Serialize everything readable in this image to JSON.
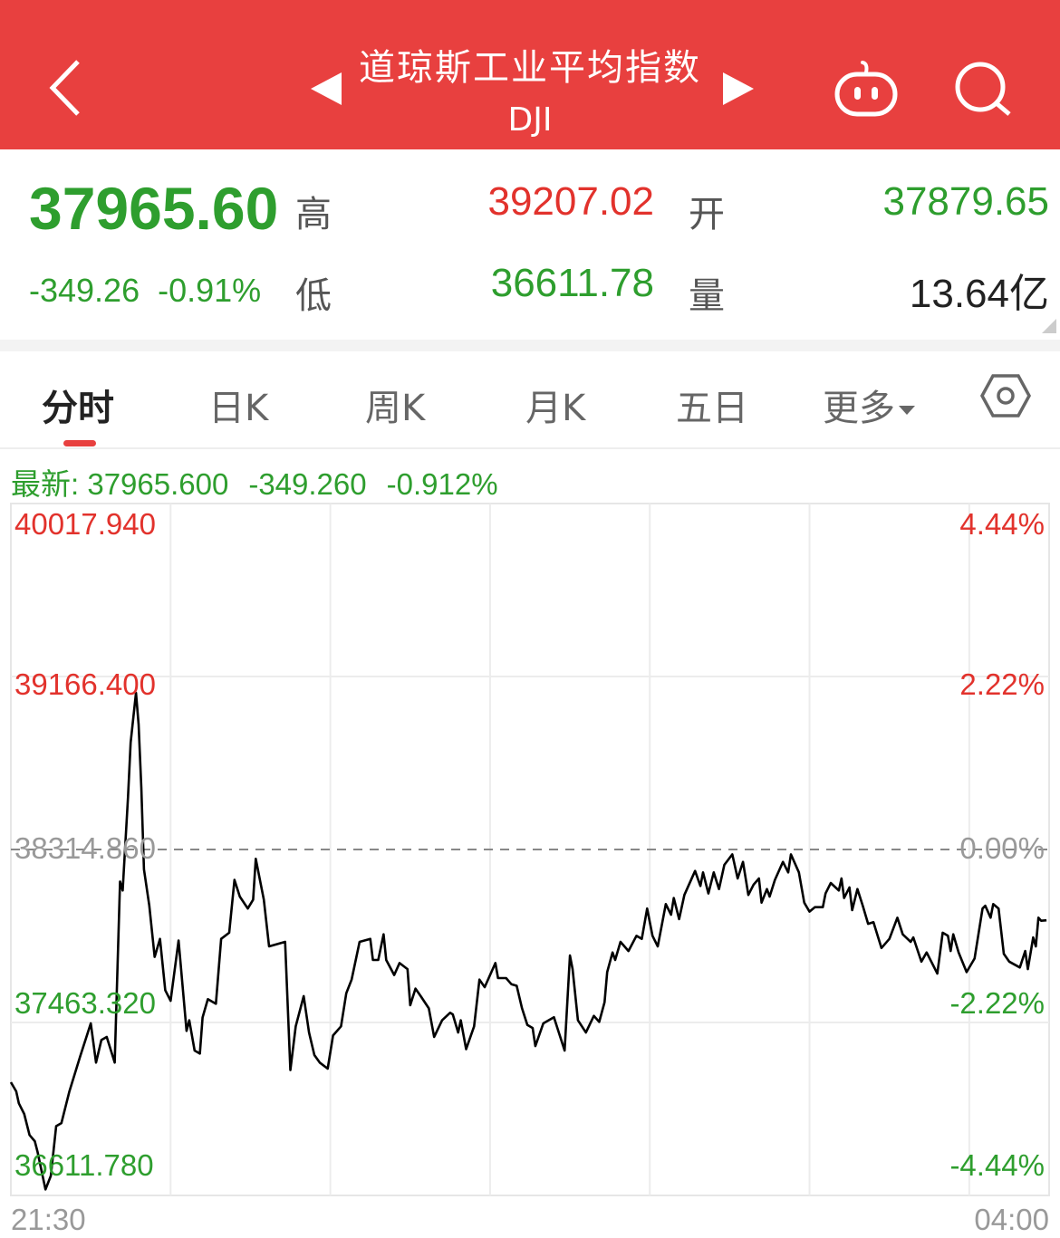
{
  "header": {
    "title": "道琼斯工业平均指数",
    "code": "DJI",
    "icons": [
      "back-chevron-icon",
      "prev-triangle-icon",
      "next-triangle-icon",
      "robot-assistant-icon",
      "search-icon"
    ],
    "color": "#E8403F"
  },
  "quote": {
    "price": "37965.60",
    "change": "-349.26",
    "change_pct": "-0.91%",
    "high_label": "高",
    "high": "39207.02",
    "low_label": "低",
    "low": "36611.78",
    "open_label": "开",
    "open": "37879.65",
    "volume_label": "量",
    "volume": "13.64亿"
  },
  "tabs": [
    {
      "label": "分时",
      "active": true
    },
    {
      "label": "日K"
    },
    {
      "label": "周K"
    },
    {
      "label": "月K"
    },
    {
      "label": "五日"
    },
    {
      "label": "更多"
    }
  ],
  "settings_icon": "hexagon-settings-icon",
  "latest": {
    "label": "最新: 37965.600",
    "change": "-349.260",
    "pct": "-0.912%"
  },
  "colors": {
    "up": "#E2322C",
    "down": "#2E9E2E",
    "flat": "#999999",
    "line": "#000000"
  },
  "chart_data": {
    "type": "line",
    "x_start": "21:30",
    "x_end": "04:00",
    "x_tick_labels": [
      "21:30",
      "04:00"
    ],
    "ylim": [
      36611.78,
      40017.94
    ],
    "prev_close": 38314.86,
    "y_ticks_left": [
      "40017.940",
      "39166.400",
      "38314.860",
      "37463.320",
      "36611.780"
    ],
    "y_ticks_right": [
      "4.44%",
      "2.22%",
      "0.00%",
      "-2.22%",
      "-4.44%"
    ],
    "grid": true,
    "points": [
      [
        "21:30",
        37169
      ],
      [
        "21:32",
        37124
      ],
      [
        "21:33",
        37065
      ],
      [
        "21:35",
        37013
      ],
      [
        "21:37",
        36909
      ],
      [
        "21:39",
        36879
      ],
      [
        "21:40",
        36827
      ],
      [
        "21:43",
        36641
      ],
      [
        "21:45",
        36708
      ],
      [
        "21:47",
        36953
      ],
      [
        "21:49",
        36968
      ],
      [
        "21:52",
        37124
      ],
      [
        "21:56",
        37295
      ],
      [
        "22:00",
        37459
      ],
      [
        "22:02",
        37266
      ],
      [
        "22:04",
        37377
      ],
      [
        "22:06",
        37392
      ],
      [
        "22:09",
        37266
      ],
      [
        "22:11",
        38157
      ],
      [
        "22:12",
        38113
      ],
      [
        "22:14",
        38573
      ],
      [
        "22:15",
        38841
      ],
      [
        "22:17",
        39086
      ],
      [
        "22:18",
        38930
      ],
      [
        "22:19",
        38618
      ],
      [
        "22:20",
        38217
      ],
      [
        "22:22",
        38038
      ],
      [
        "22:24",
        37786
      ],
      [
        "22:26",
        37875
      ],
      [
        "22:28",
        37622
      ],
      [
        "22:30",
        37570
      ],
      [
        "22:33",
        37867
      ],
      [
        "22:36",
        37422
      ],
      [
        "22:37",
        37474
      ],
      [
        "22:39",
        37325
      ],
      [
        "22:41",
        37310
      ],
      [
        "22:42",
        37488
      ],
      [
        "22:44",
        37578
      ],
      [
        "22:47",
        37555
      ],
      [
        "22:49",
        37875
      ],
      [
        "22:52",
        37905
      ],
      [
        "22:54",
        38165
      ],
      [
        "22:56",
        38083
      ],
      [
        "22:59",
        38024
      ],
      [
        "23:01",
        38068
      ],
      [
        "23:02",
        38269
      ],
      [
        "23:05",
        38068
      ],
      [
        "23:07",
        37838
      ],
      [
        "23:13",
        37860
      ],
      [
        "23:15",
        37229
      ],
      [
        "23:17",
        37444
      ],
      [
        "23:20",
        37593
      ],
      [
        "23:22",
        37414
      ],
      [
        "23:24",
        37303
      ],
      [
        "23:26",
        37266
      ],
      [
        "23:29",
        37236
      ],
      [
        "23:31",
        37399
      ],
      [
        "23:34",
        37444
      ],
      [
        "23:36",
        37607
      ],
      [
        "23:38",
        37674
      ],
      [
        "23:41",
        37860
      ],
      [
        "23:45",
        37875
      ],
      [
        "23:46",
        37771
      ],
      [
        "23:48",
        37771
      ],
      [
        "23:50",
        37897
      ],
      [
        "23:51",
        37771
      ],
      [
        "23:54",
        37697
      ],
      [
        "23:56",
        37756
      ],
      [
        "23:59",
        37726
      ],
      [
        "00:00",
        37548
      ],
      [
        "00:02",
        37630
      ],
      [
        "00:04",
        37592
      ],
      [
        "00:07",
        37533
      ],
      [
        "00:09",
        37392
      ],
      [
        "00:12",
        37474
      ],
      [
        "00:15",
        37511
      ],
      [
        "00:16",
        37503
      ],
      [
        "00:18",
        37414
      ],
      [
        "00:19",
        37474
      ],
      [
        "00:21",
        37332
      ],
      [
        "00:24",
        37444
      ],
      [
        "00:26",
        37674
      ],
      [
        "00:28",
        37637
      ],
      [
        "00:32",
        37756
      ],
      [
        "00:33",
        37682
      ],
      [
        "00:36",
        37682
      ],
      [
        "00:38",
        37652
      ],
      [
        "00:40",
        37644
      ],
      [
        "00:42",
        37533
      ],
      [
        "00:44",
        37451
      ],
      [
        "00:46",
        37436
      ],
      [
        "00:47",
        37347
      ],
      [
        "00:50",
        37459
      ],
      [
        "00:54",
        37489
      ],
      [
        "00:56",
        37407
      ],
      [
        "00:58",
        37325
      ],
      [
        "01:00",
        37793
      ],
      [
        "01:01",
        37726
      ],
      [
        "01:03",
        37474
      ],
      [
        "01:06",
        37414
      ],
      [
        "01:09",
        37496
      ],
      [
        "01:11",
        37466
      ],
      [
        "01:13",
        37563
      ],
      [
        "01:14",
        37711
      ],
      [
        "01:16",
        37808
      ],
      [
        "01:17",
        37771
      ],
      [
        "01:19",
        37860
      ],
      [
        "01:22",
        37815
      ],
      [
        "01:25",
        37890
      ],
      [
        "01:27",
        37875
      ],
      [
        "01:29",
        38024
      ],
      [
        "01:31",
        37890
      ],
      [
        "01:33",
        37838
      ],
      [
        "01:36",
        38046
      ],
      [
        "01:38",
        37994
      ],
      [
        "01:39",
        38076
      ],
      [
        "01:41",
        37972
      ],
      [
        "01:43",
        38091
      ],
      [
        "01:47",
        38209
      ],
      [
        "01:49",
        38135
      ],
      [
        "01:50",
        38202
      ],
      [
        "01:52",
        38098
      ],
      [
        "01:54",
        38202
      ],
      [
        "01:56",
        38120
      ],
      [
        "01:58",
        38239
      ],
      [
        "02:01",
        38291
      ],
      [
        "02:03",
        38172
      ],
      [
        "02:05",
        38254
      ],
      [
        "02:07",
        38091
      ],
      [
        "02:09",
        38142
      ],
      [
        "02:11",
        38172
      ],
      [
        "02:12",
        38053
      ],
      [
        "02:14",
        38120
      ],
      [
        "02:15",
        38083
      ],
      [
        "02:17",
        38165
      ],
      [
        "02:20",
        38254
      ],
      [
        "02:22",
        38202
      ],
      [
        "02:23",
        38291
      ],
      [
        "02:26",
        38202
      ],
      [
        "02:28",
        38053
      ],
      [
        "02:30",
        38009
      ],
      [
        "02:32",
        38031
      ],
      [
        "02:35",
        38031
      ],
      [
        "02:36",
        38098
      ],
      [
        "02:38",
        38150
      ],
      [
        "02:41",
        38113
      ],
      [
        "02:42",
        38172
      ],
      [
        "02:43",
        38076
      ],
      [
        "02:45",
        38128
      ],
      [
        "02:46",
        38016
      ],
      [
        "02:48",
        38120
      ],
      [
        "02:50",
        38038
      ],
      [
        "02:52",
        37949
      ],
      [
        "02:54",
        37957
      ],
      [
        "02:57",
        37830
      ],
      [
        "03:00",
        37875
      ],
      [
        "03:03",
        37979
      ],
      [
        "03:05",
        37897
      ],
      [
        "03:08",
        37860
      ],
      [
        "03:09",
        37882
      ],
      [
        "03:12",
        37763
      ],
      [
        "03:14",
        37808
      ],
      [
        "03:18",
        37704
      ],
      [
        "03:20",
        37905
      ],
      [
        "03:22",
        37890
      ],
      [
        "03:23",
        37815
      ],
      [
        "03:24",
        37897
      ],
      [
        "03:26",
        37808
      ],
      [
        "03:29",
        37711
      ],
      [
        "03:32",
        37778
      ],
      [
        "03:35",
        38024
      ],
      [
        "03:36",
        38038
      ],
      [
        "03:38",
        37979
      ],
      [
        "03:39",
        38046
      ],
      [
        "03:41",
        38024
      ],
      [
        "03:43",
        37801
      ],
      [
        "03:45",
        37763
      ],
      [
        "03:49",
        37734
      ],
      [
        "03:51",
        37815
      ],
      [
        "03:52",
        37726
      ],
      [
        "03:54",
        37882
      ],
      [
        "03:55",
        37838
      ],
      [
        "03:56",
        37979
      ],
      [
        "03:57",
        37964
      ],
      [
        "03:59",
        37966
      ]
    ]
  }
}
